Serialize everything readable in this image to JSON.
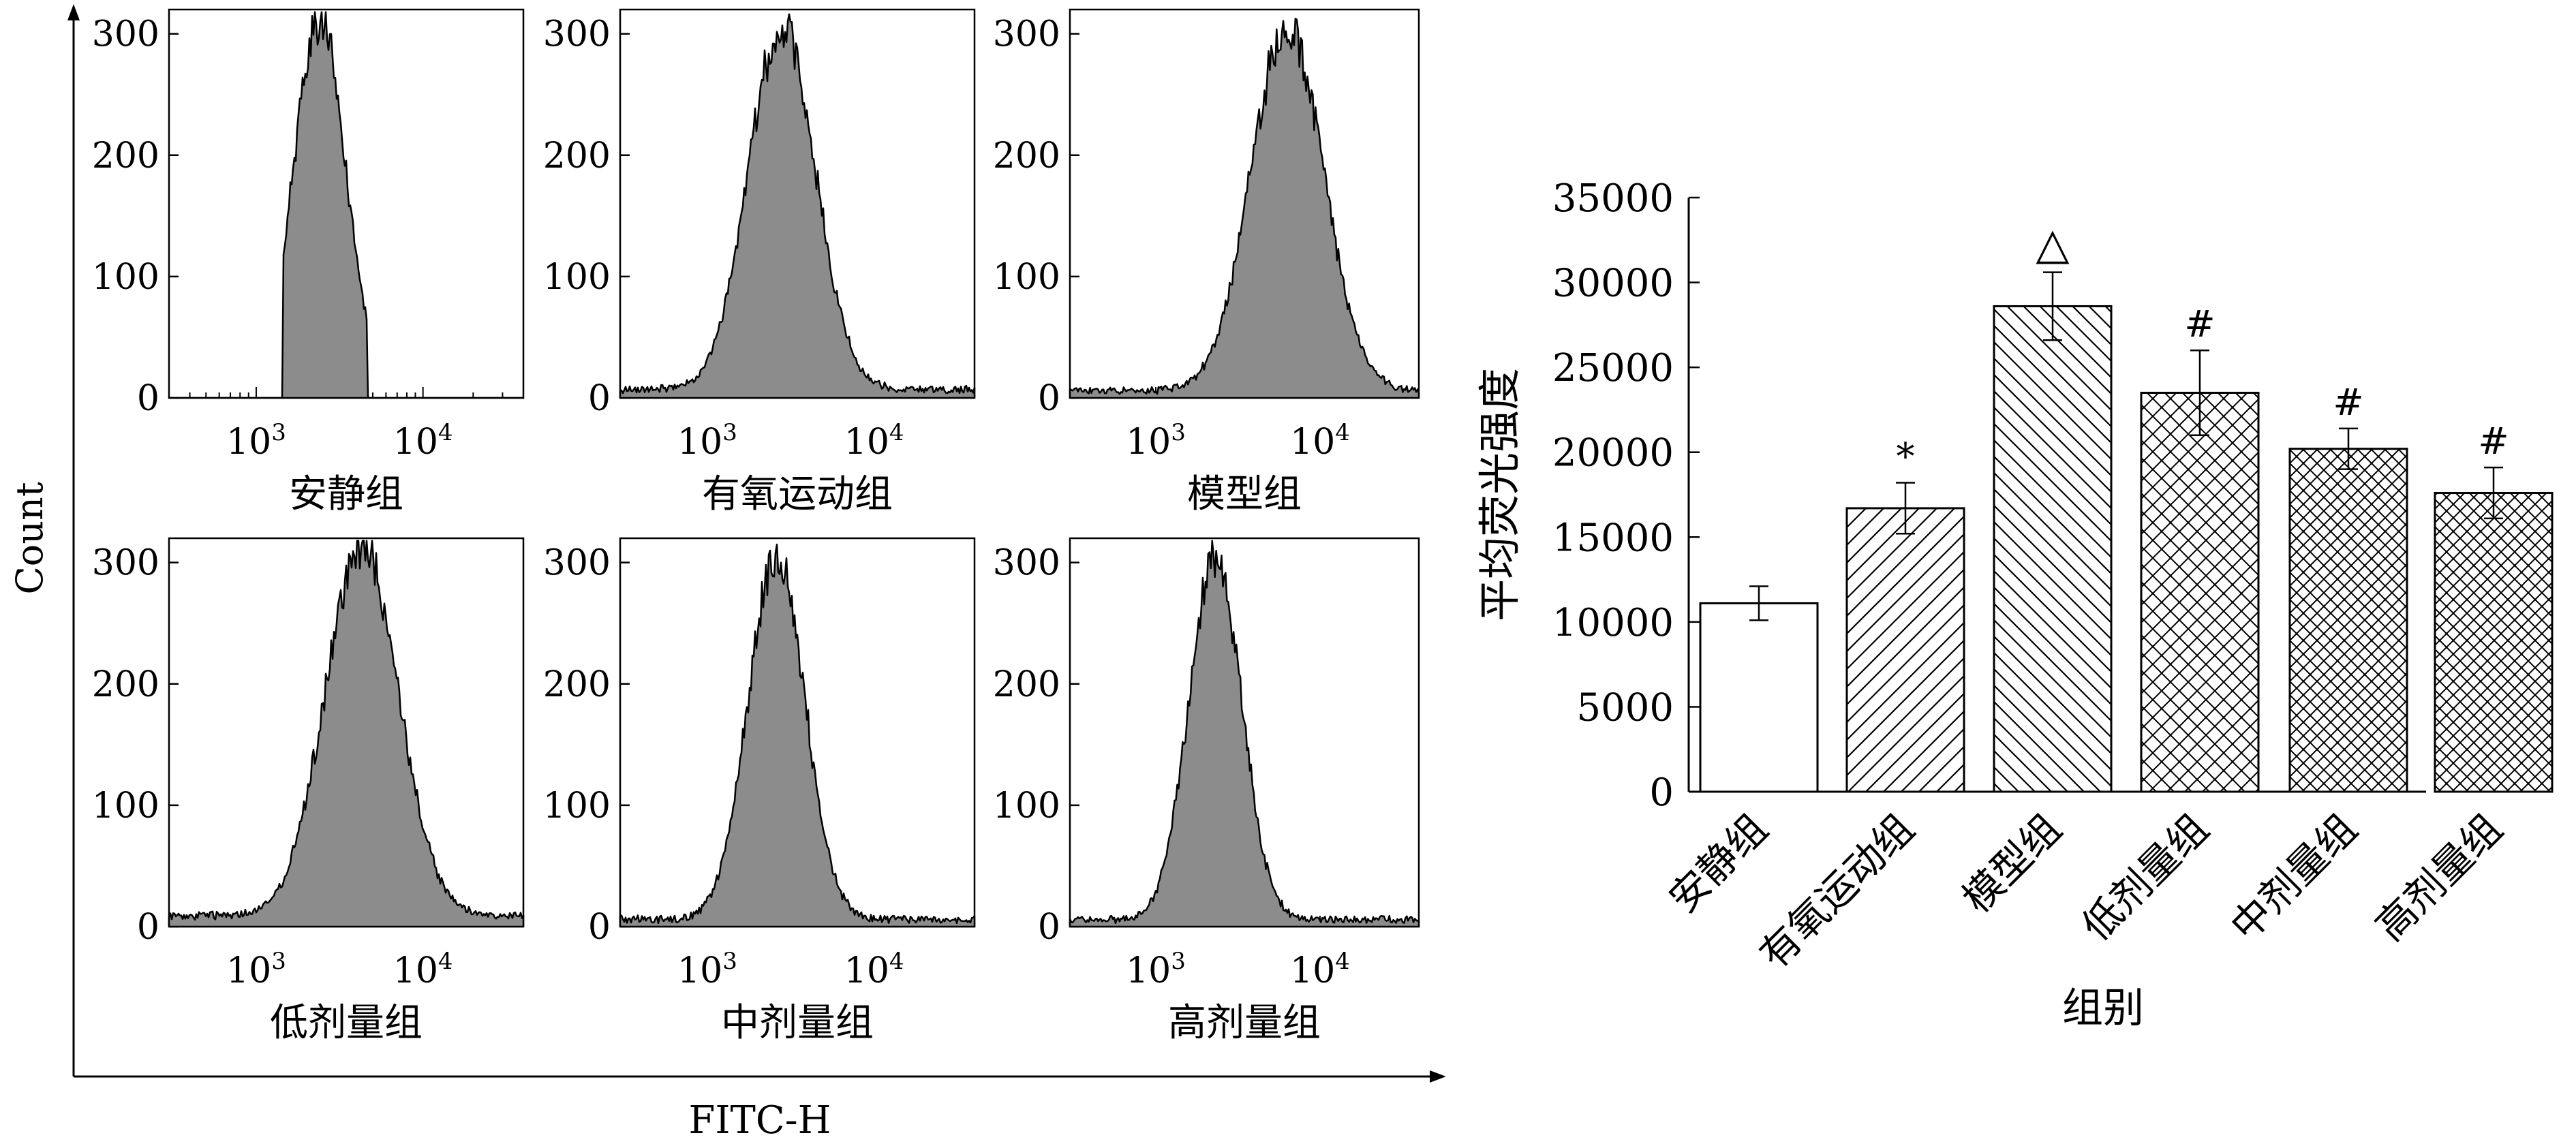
{
  "figure": {
    "left_ylabel": "Count",
    "left_xlabel": "FITC-H"
  },
  "chart_data": [
    {
      "type": "area",
      "kind": "histogram-panels",
      "fill_color": "#8c8c8c",
      "line_color": "#000000",
      "ylabel": "Count",
      "xlabel": "FITC-H",
      "x_scale": "log",
      "y_ticks": [
        "0",
        "100",
        "200",
        "300"
      ],
      "x_ticks": [
        {
          "base": "10",
          "exp": "3"
        },
        {
          "base": "10",
          "exp": "4"
        }
      ],
      "ylim": [
        0,
        320
      ],
      "xlim": [
        300,
        40000
      ],
      "panels": [
        {
          "name": "安静组",
          "peak_x": 2400,
          "peak_count": 310,
          "width": 0.16,
          "left_cut": 1450,
          "right_cut": 4600,
          "baseline": 0
        },
        {
          "name": "有氧运动组",
          "peak_x": 2800,
          "peak_count": 300,
          "width": 0.2,
          "baseline": 7
        },
        {
          "name": "模型组",
          "peak_x": 6300,
          "peak_count": 300,
          "width": 0.22,
          "baseline": 6
        },
        {
          "name": "低剂量组",
          "peak_x": 4300,
          "peak_count": 305,
          "width": 0.22,
          "baseline": 9
        },
        {
          "name": "中剂量组",
          "peak_x": 2600,
          "peak_count": 300,
          "width": 0.17,
          "baseline": 6
        },
        {
          "name": "高剂量组",
          "peak_x": 2300,
          "peak_count": 300,
          "width": 0.16,
          "baseline": 6
        }
      ]
    },
    {
      "type": "bar",
      "title": "",
      "ylabel": "平均荧光强度",
      "xlabel": "组别",
      "ylim": [
        0,
        35000
      ],
      "yticks": [
        0,
        5000,
        10000,
        15000,
        20000,
        25000,
        30000,
        35000
      ],
      "categories": [
        "安静组",
        "有氧运动组",
        "模型组",
        "低剂量组",
        "中剂量组",
        "高剂量组"
      ],
      "values": [
        11100,
        16700,
        28600,
        23500,
        20200,
        17600
      ],
      "errors": [
        1000,
        1500,
        2000,
        2500,
        1200,
        1500
      ],
      "annotations": [
        "",
        "*",
        "△",
        "#",
        "#",
        "#"
      ],
      "patterns": [
        "none",
        "diag-right",
        "diag-left",
        "cross",
        "cross-dense",
        "cross-dense"
      ]
    }
  ]
}
